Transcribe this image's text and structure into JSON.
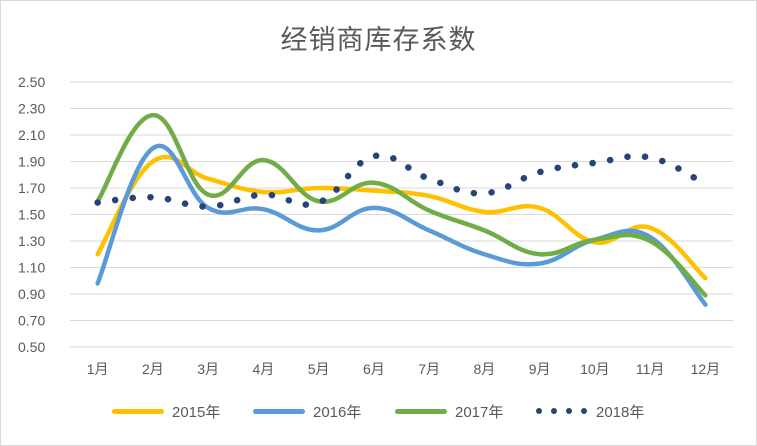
{
  "chart_data": {
    "type": "line",
    "title": "经销商库存系数",
    "categories": [
      "1月",
      "2月",
      "3月",
      "4月",
      "5月",
      "6月",
      "7月",
      "8月",
      "9月",
      "10月",
      "11月",
      "12月"
    ],
    "ylim": [
      0.5,
      2.5
    ],
    "yticks": [
      "0.50",
      "0.70",
      "0.90",
      "1.10",
      "1.30",
      "1.50",
      "1.70",
      "1.90",
      "2.10",
      "2.30",
      "2.50"
    ],
    "grid": true,
    "legend_position": "bottom",
    "series": [
      {
        "name": "2015年",
        "color": "#FFC000",
        "style": "solid",
        "values": [
          1.2,
          1.9,
          1.77,
          1.67,
          1.7,
          1.68,
          1.64,
          1.52,
          1.55,
          1.29,
          1.4,
          1.02
        ]
      },
      {
        "name": "2016年",
        "color": "#5B9BD5",
        "style": "solid",
        "values": [
          0.98,
          2.0,
          1.55,
          1.54,
          1.38,
          1.55,
          1.38,
          1.2,
          1.13,
          1.31,
          1.33,
          0.82
        ]
      },
      {
        "name": "2017年",
        "color": "#70AD47",
        "style": "solid",
        "values": [
          1.6,
          2.25,
          1.65,
          1.91,
          1.6,
          1.74,
          1.53,
          1.38,
          1.2,
          1.31,
          1.3,
          0.89
        ]
      },
      {
        "name": "2018年",
        "color": "#264478",
        "style": "dotted",
        "values": [
          1.59,
          1.63,
          1.56,
          1.65,
          1.59,
          1.94,
          1.77,
          1.66,
          1.82,
          1.89,
          1.93,
          1.73
        ]
      }
    ]
  }
}
